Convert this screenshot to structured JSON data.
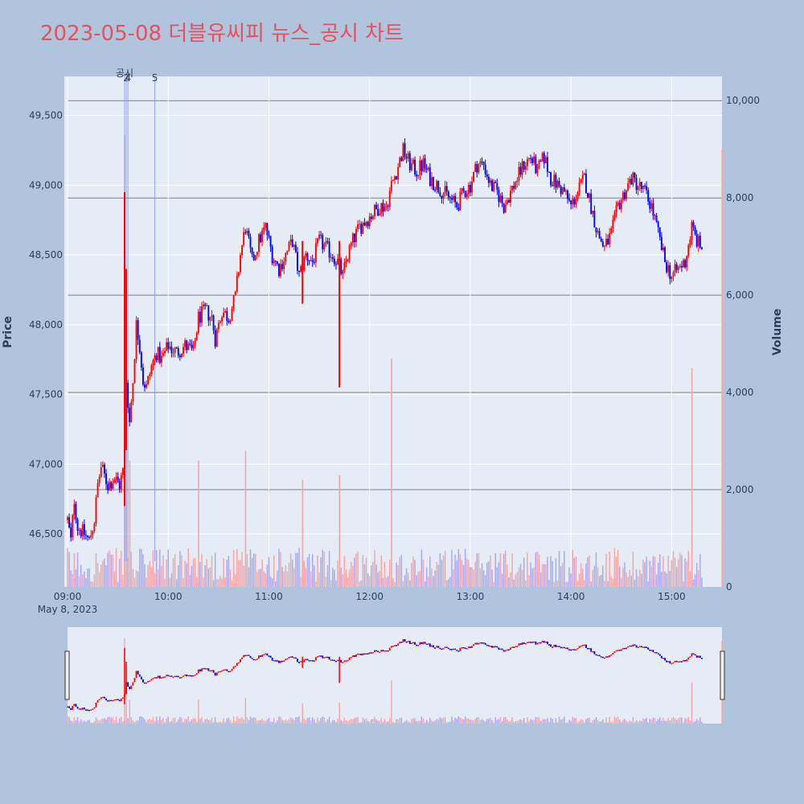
{
  "title": "2023-05-08 더블유씨피 뉴스_공시 차트",
  "colors": {
    "background": "#b0c4de",
    "plot_bg": "#e5ecf6",
    "up": "#ff0000",
    "down": "#0000ff",
    "up_volume": "#f4a5a5",
    "down_volume": "#a5a8f4",
    "marker_line": "#7f92ff",
    "grid": "#ffffff",
    "volume_grid": "#808080"
  },
  "chart_data": {
    "type": "candlestick",
    "title": "2023-05-08 더블유씨피 뉴스_공시 차트",
    "date_label": "May 8, 2023",
    "xlabel": "",
    "ylabel": "Price",
    "y2label": "Volume",
    "x_ticks": [
      "09:00",
      "10:00",
      "11:00",
      "12:00",
      "13:00",
      "14:00",
      "15:00"
    ],
    "x_range": [
      "09:00",
      "15:30"
    ],
    "y_ticks": [
      "46,500",
      "47,000",
      "47,500",
      "48,000",
      "48,500",
      "49,000",
      "49,500"
    ],
    "y_tick_values": [
      46500,
      47000,
      47500,
      48000,
      48500,
      49000,
      49500
    ],
    "y_range": [
      46120,
      49780
    ],
    "y2_ticks": [
      "0",
      "2,000",
      "4,000",
      "6,000",
      "8,000",
      "10,000"
    ],
    "y2_tick_values": [
      0,
      2000,
      4000,
      6000,
      8000,
      10000
    ],
    "y2_range": [
      0,
      10500
    ],
    "price_path": [
      [
        "09:00",
        46600
      ],
      [
        "09:02",
        46450
      ],
      [
        "09:04",
        46750
      ],
      [
        "09:06",
        46550
      ],
      [
        "09:10",
        46500
      ],
      [
        "09:13",
        46450
      ],
      [
        "09:16",
        46600
      ],
      [
        "09:18",
        46850
      ],
      [
        "09:20",
        46980
      ],
      [
        "09:24",
        46850
      ],
      [
        "09:28",
        46900
      ],
      [
        "09:31",
        46850
      ],
      [
        "09:33",
        46950
      ],
      [
        "09:34",
        47100
      ],
      [
        "09:35",
        47600
      ],
      [
        "09:37",
        47300
      ],
      [
        "09:39",
        47600
      ],
      [
        "09:41",
        48000
      ],
      [
        "09:43",
        47850
      ],
      [
        "09:45",
        47600
      ],
      [
        "09:47",
        47550
      ],
      [
        "09:50",
        47700
      ],
      [
        "09:53",
        47800
      ],
      [
        "09:56",
        47750
      ],
      [
        "10:00",
        47850
      ],
      [
        "10:05",
        47800
      ],
      [
        "10:10",
        47850
      ],
      [
        "10:15",
        47800
      ],
      [
        "10:18",
        48050
      ],
      [
        "10:22",
        48100
      ],
      [
        "10:26",
        48050
      ],
      [
        "10:28",
        47900
      ],
      [
        "10:32",
        48100
      ],
      [
        "10:36",
        48050
      ],
      [
        "10:40",
        48200
      ],
      [
        "10:43",
        48500
      ],
      [
        "10:46",
        48700
      ],
      [
        "10:50",
        48450
      ],
      [
        "10:54",
        48600
      ],
      [
        "10:58",
        48700
      ],
      [
        "11:02",
        48500
      ],
      [
        "11:06",
        48400
      ],
      [
        "11:10",
        48500
      ],
      [
        "11:14",
        48600
      ],
      [
        "11:18",
        48350
      ],
      [
        "11:22",
        48500
      ],
      [
        "11:26",
        48450
      ],
      [
        "11:30",
        48600
      ],
      [
        "11:34",
        48550
      ],
      [
        "11:38",
        48500
      ],
      [
        "11:41",
        48450
      ],
      [
        "11:44",
        48350
      ],
      [
        "11:47",
        48500
      ],
      [
        "11:50",
        48600
      ],
      [
        "11:54",
        48700
      ],
      [
        "11:58",
        48750
      ],
      [
        "12:02",
        48800
      ],
      [
        "12:06",
        48850
      ],
      [
        "12:10",
        48850
      ],
      [
        "12:13",
        49000
      ],
      [
        "12:16",
        49100
      ],
      [
        "12:20",
        49250
      ],
      [
        "12:24",
        49150
      ],
      [
        "12:28",
        49100
      ],
      [
        "12:32",
        49150
      ],
      [
        "12:36",
        49050
      ],
      [
        "12:40",
        49000
      ],
      [
        "12:44",
        48950
      ],
      [
        "12:48",
        48900
      ],
      [
        "12:52",
        48850
      ],
      [
        "12:56",
        48950
      ],
      [
        "13:00",
        49000
      ],
      [
        "13:04",
        49150
      ],
      [
        "13:08",
        49150
      ],
      [
        "13:12",
        49000
      ],
      [
        "13:16",
        48950
      ],
      [
        "13:20",
        48850
      ],
      [
        "13:24",
        48950
      ],
      [
        "13:28",
        49050
      ],
      [
        "13:32",
        49150
      ],
      [
        "13:36",
        49200
      ],
      [
        "13:40",
        49100
      ],
      [
        "13:44",
        49200
      ],
      [
        "13:48",
        49050
      ],
      [
        "13:52",
        49000
      ],
      [
        "13:56",
        48950
      ],
      [
        "14:00",
        48850
      ],
      [
        "14:04",
        48950
      ],
      [
        "14:08",
        49050
      ],
      [
        "14:12",
        48850
      ],
      [
        "14:16",
        48650
      ],
      [
        "14:20",
        48550
      ],
      [
        "14:24",
        48650
      ],
      [
        "14:28",
        48850
      ],
      [
        "14:32",
        48950
      ],
      [
        "14:36",
        49050
      ],
      [
        "14:40",
        49000
      ],
      [
        "14:44",
        48950
      ],
      [
        "14:48",
        48850
      ],
      [
        "14:52",
        48650
      ],
      [
        "14:56",
        48450
      ],
      [
        "15:00",
        48350
      ],
      [
        "15:04",
        48400
      ],
      [
        "15:08",
        48450
      ],
      [
        "15:12",
        48700
      ],
      [
        "15:15",
        48600
      ],
      [
        "15:18",
        48550
      ]
    ],
    "spikes": [
      {
        "time": "09:34",
        "low": 46700,
        "high": 48950
      },
      {
        "time": "09:35",
        "low": 47100,
        "high": 48400
      },
      {
        "time": "11:20",
        "low": 48150,
        "high": 48600
      },
      {
        "time": "11:42",
        "low": 47550,
        "high": 48600
      }
    ],
    "volume_spikes": [
      {
        "time": "09:34",
        "value": 9300
      },
      {
        "time": "09:35",
        "value": 5800
      },
      {
        "time": "09:37",
        "value": 2600
      },
      {
        "time": "10:18",
        "value": 2600
      },
      {
        "time": "10:46",
        "value": 2800
      },
      {
        "time": "11:20",
        "value": 2200
      },
      {
        "time": "11:42",
        "value": 2300
      },
      {
        "time": "12:13",
        "value": 4700
      },
      {
        "time": "15:12",
        "value": 4500
      },
      {
        "time": "15:30",
        "value": 9000
      }
    ],
    "markers": [
      {
        "time": "09:34",
        "label": "공시"
      },
      {
        "time": "09:35",
        "label": "2"
      },
      {
        "time": "09:36",
        "label": "4"
      },
      {
        "time": "09:52",
        "label": "5"
      }
    ]
  }
}
